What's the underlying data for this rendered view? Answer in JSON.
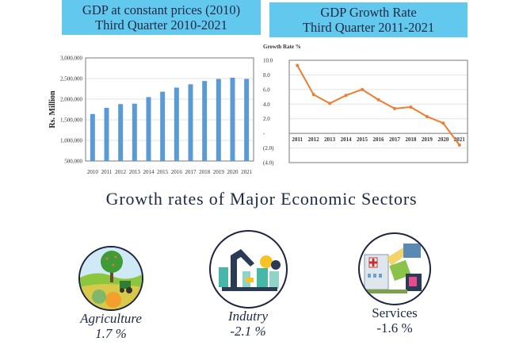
{
  "charts_header": {
    "left_title_line1": "GDP at constant prices (2010)",
    "left_title_line2": "Third Quarter 2010-2021",
    "right_title_line1": "GDP Growth Rate",
    "right_title_line2": "Third Quarter 2011-2021"
  },
  "colors": {
    "banner": "#63c8ee",
    "bar": "#5b9bd5",
    "line": "#ed7d31",
    "text": "#1b2a45"
  },
  "chart_data": [
    {
      "type": "bar",
      "title": "GDP at constant prices (2010) Third Quarter 2010-2021",
      "xlabel": "",
      "ylabel": "Rs. Million",
      "categories": [
        "2010",
        "2011",
        "2012",
        "2013",
        "2014",
        "2015",
        "2016",
        "2017",
        "2018",
        "2019",
        "2020",
        "2021"
      ],
      "values": [
        1640000,
        1790000,
        1880000,
        1890000,
        2050000,
        2180000,
        2280000,
        2360000,
        2440000,
        2490000,
        2520000,
        2490000
      ],
      "ylim": [
        500000,
        3000000
      ],
      "yticks": [
        500000,
        1000000,
        1500000,
        2000000,
        2500000,
        3000000
      ],
      "ytick_labels": [
        "500,000",
        "1,000,000",
        "1,500,000",
        "2,000,000",
        "2,500,000",
        "3,000,000"
      ],
      "grid": true,
      "legend": "none"
    },
    {
      "type": "line",
      "title": "GDP Growth Rate Third Quarter 2011-2021",
      "ylabel": "Growth Rate %",
      "xlabel": "",
      "categories": [
        "2011",
        "2012",
        "2013",
        "2014",
        "2015",
        "2016",
        "2017",
        "2018",
        "2019",
        "2020",
        "2021"
      ],
      "values": [
        9.3,
        5.3,
        4.1,
        5.2,
        6.0,
        4.6,
        3.4,
        3.6,
        2.3,
        1.4,
        -1.6
      ],
      "ylim": [
        -4.0,
        10.0
      ],
      "yticks": [
        10,
        8,
        6,
        4,
        2,
        0,
        -2,
        -4
      ],
      "ytick_labels": [
        "10.0",
        "8.0",
        "6.0",
        "4.0",
        "2.0",
        "-",
        "(2.0)",
        "(4.0)"
      ],
      "grid": true,
      "legend": "none"
    }
  ],
  "section": {
    "title": "Growth rates of Major Economic Sectors"
  },
  "sectors": [
    {
      "name": "Agriculture",
      "value": "1.7 %",
      "icon": "agriculture-icon"
    },
    {
      "name": "Indutry",
      "value": "-2.1 %",
      "icon": "industry-icon"
    },
    {
      "name": "Services",
      "value": "-1.6 %",
      "icon": "services-icon"
    }
  ]
}
